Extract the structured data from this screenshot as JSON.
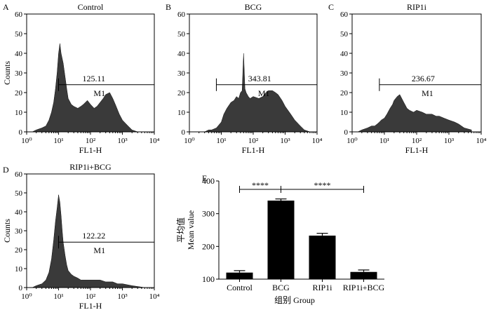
{
  "colors": {
    "histogram_fill": "#3a3a3a",
    "bar_fill": "#000000",
    "background": "#ffffff"
  },
  "chart_data": [
    {
      "type": "area",
      "panel_letter": "A",
      "title": "Control",
      "xlabel": "FL1-H",
      "ylabel": "Counts",
      "x_scale": "log",
      "xlim": [
        1,
        10000
      ],
      "ylim": [
        0,
        60
      ],
      "x_tick_labels": [
        "10⁰",
        "10¹",
        "10²",
        "10³",
        "10⁴"
      ],
      "y_tick_labels": [
        "0",
        "10",
        "20",
        "30",
        "40",
        "50",
        "60"
      ],
      "gate": {
        "name": "M1",
        "mean_label": "125.11",
        "x_range": [
          10,
          10000
        ],
        "count_level": 24
      },
      "x": [
        1.5,
        2,
        3,
        4,
        5,
        6,
        7,
        8,
        9,
        10,
        11,
        12,
        14,
        16,
        18,
        20,
        25,
        30,
        40,
        50,
        60,
        80,
        100,
        130,
        160,
        200,
        250,
        300,
        400,
        500,
        600,
        800,
        1000,
        1500,
        2000,
        3000,
        5000
      ],
      "values": [
        0,
        1,
        2,
        3,
        6,
        10,
        15,
        22,
        30,
        40,
        45,
        40,
        35,
        28,
        22,
        17,
        14,
        13,
        12,
        13,
        14,
        16,
        14,
        12,
        13,
        15,
        17,
        19,
        20,
        17,
        14,
        9,
        6,
        3,
        1,
        0,
        0
      ]
    },
    {
      "type": "area",
      "panel_letter": "B",
      "title": "BCG",
      "xlabel": "FL1-H",
      "ylabel": "",
      "x_scale": "log",
      "xlim": [
        1,
        10000
      ],
      "ylim": [
        0,
        60
      ],
      "x_tick_labels": [
        "10⁰",
        "10¹",
        "10²",
        "10³",
        "10⁴"
      ],
      "y_tick_labels": [
        "0",
        "10",
        "20",
        "30",
        "40",
        "50",
        "60"
      ],
      "gate": {
        "name": "M1",
        "mean_label": "343.81",
        "x_range": [
          7,
          10000
        ],
        "count_level": 24
      },
      "x": [
        1.5,
        2,
        3,
        4,
        5,
        7,
        10,
        12,
        15,
        20,
        25,
        30,
        35,
        40,
        45,
        50,
        55,
        60,
        70,
        80,
        100,
        150,
        200,
        250,
        300,
        400,
        500,
        600,
        800,
        1000,
        1500,
        2000,
        3000,
        4000,
        6000
      ],
      "values": [
        0,
        0,
        0,
        1,
        1,
        2,
        5,
        9,
        12,
        15,
        16,
        18,
        17,
        20,
        21,
        40,
        22,
        20,
        18,
        17,
        18,
        17,
        18,
        20,
        21,
        21,
        20,
        19,
        16,
        13,
        9,
        6,
        3,
        1,
        0
      ]
    },
    {
      "type": "area",
      "panel_letter": "C",
      "title": "RIP1i",
      "xlabel": "FL1-H",
      "ylabel": "",
      "x_scale": "log",
      "xlim": [
        1,
        10000
      ],
      "ylim": [
        0,
        60
      ],
      "x_tick_labels": [
        "10⁰",
        "10¹",
        "10²",
        "10³",
        "10⁴"
      ],
      "y_tick_labels": [
        "0",
        "10",
        "20",
        "30",
        "40",
        "50",
        "60"
      ],
      "gate": {
        "name": "M1",
        "mean_label": "236.67",
        "x_range": [
          7,
          10000
        ],
        "count_level": 24
      },
      "x": [
        1.5,
        2,
        3,
        4,
        5,
        6,
        7,
        8,
        10,
        12,
        15,
        18,
        20,
        25,
        30,
        40,
        50,
        60,
        80,
        100,
        150,
        200,
        300,
        400,
        500,
        700,
        1000,
        1500,
        2000,
        3000,
        5000
      ],
      "values": [
        0,
        1,
        2,
        3,
        3,
        4,
        5,
        6,
        7,
        9,
        12,
        14,
        16,
        18,
        19,
        15,
        12,
        11,
        10,
        11,
        10,
        9,
        9,
        8,
        8,
        7,
        6,
        5,
        4,
        2,
        1
      ]
    },
    {
      "type": "area",
      "panel_letter": "D",
      "title": "RIP1i+BCG",
      "xlabel": "FL1-H",
      "ylabel": "Counts",
      "x_scale": "log",
      "xlim": [
        1,
        10000
      ],
      "ylim": [
        0,
        60
      ],
      "x_tick_labels": [
        "10⁰",
        "10¹",
        "10²",
        "10³",
        "10⁴"
      ],
      "y_tick_labels": [
        "0",
        "10",
        "20",
        "30",
        "40",
        "50",
        "60"
      ],
      "gate": {
        "name": "M1",
        "mean_label": "122.22",
        "x_range": [
          10,
          10000
        ],
        "count_level": 24
      },
      "x": [
        1.5,
        2,
        3,
        4,
        5,
        6,
        7,
        8,
        9,
        10,
        11,
        12,
        13,
        14,
        16,
        18,
        20,
        25,
        30,
        40,
        50,
        70,
        100,
        150,
        200,
        300,
        500,
        700,
        1000,
        2000,
        5000
      ],
      "values": [
        0,
        1,
        2,
        4,
        8,
        15,
        25,
        35,
        42,
        49,
        45,
        38,
        30,
        24,
        17,
        12,
        9,
        7,
        6,
        5,
        4,
        4,
        4,
        4,
        4,
        3,
        3,
        2,
        2,
        1,
        0
      ]
    },
    {
      "type": "bar",
      "panel_letter": "E",
      "title": "",
      "xlabel": "组别 Group",
      "ylabel_cn": "平均值",
      "ylabel": "Mean value",
      "categories": [
        "Control",
        "BCG",
        "RIP1i",
        "RIP1i+BCG"
      ],
      "values": [
        120,
        340,
        233,
        122
      ],
      "errors": [
        6,
        5,
        7,
        6
      ],
      "ylim": [
        100,
        400
      ],
      "y_tick_labels": [
        "100",
        "200",
        "300",
        "400"
      ],
      "significance": [
        {
          "from": "Control",
          "to": "BCG",
          "label": "****"
        },
        {
          "from": "BCG",
          "to": "RIP1i+BCG",
          "label": "****"
        }
      ]
    }
  ]
}
